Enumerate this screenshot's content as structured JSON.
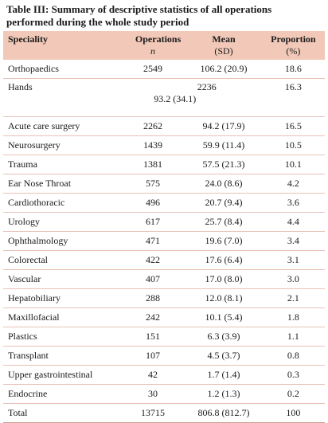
{
  "caption_line1": "Table III: Summary of descriptive statistics of all operations",
  "caption_line2": "performed during the whole study period",
  "headers": {
    "speciality": "Speciality",
    "operations": "Operations",
    "operations_sub": "n",
    "mean": "Mean",
    "mean_sub": "(SD)",
    "proportion": "Proportion",
    "proportion_sub": "(%)"
  },
  "hands": {
    "name": "Hands",
    "ops": "2236",
    "mean": "93.2 (34.1)",
    "prop": "16.3"
  },
  "rows": [
    {
      "name": "Orthopaedics",
      "ops": "2549",
      "mean": "106.2 (20.9)",
      "prop": "18.6"
    },
    {
      "name": "Acute care surgery",
      "ops": "2262",
      "mean": "94.2 (17.9)",
      "prop": "16.5"
    },
    {
      "name": "Neurosurgery",
      "ops": "1439",
      "mean": "59.9 (11.4)",
      "prop": "10.5"
    },
    {
      "name": "Trauma",
      "ops": "1381",
      "mean": "57.5 (21.3)",
      "prop": "10.1"
    },
    {
      "name": "Ear Nose Throat",
      "ops": "575",
      "mean": "24.0 (8.6)",
      "prop": "4.2"
    },
    {
      "name": "Cardiothoracic",
      "ops": "496",
      "mean": "20.7 (9.4)",
      "prop": "3.6"
    },
    {
      "name": "Urology",
      "ops": "617",
      "mean": "25.7 (8.4)",
      "prop": "4.4"
    },
    {
      "name": "Ophthalmology",
      "ops": "471",
      "mean": "19.6 (7.0)",
      "prop": "3.4"
    },
    {
      "name": "Colorectal",
      "ops": "422",
      "mean": "17.6 (6.4)",
      "prop": "3.1"
    },
    {
      "name": "Vascular",
      "ops": "407",
      "mean": "17.0 (8.0)",
      "prop": "3.0"
    },
    {
      "name": "Hepatobiliary",
      "ops": "288",
      "mean": "12.0 (8.1)",
      "prop": "2.1"
    },
    {
      "name": "Maxillofacial",
      "ops": "242",
      "mean": "10.1 (5.4)",
      "prop": "1.8"
    },
    {
      "name": "Plastics",
      "ops": "151",
      "mean": "6.3 (3.9)",
      "prop": "1.1"
    },
    {
      "name": "Transplant",
      "ops": "107",
      "mean": "4.5 (3.7)",
      "prop": "0.8"
    },
    {
      "name": "Upper gastrointestinal",
      "ops": "42",
      "mean": "1.7 (1.4)",
      "prop": "0.3"
    },
    {
      "name": "Endocrine",
      "ops": "30",
      "mean": "1.2 (1.3)",
      "prop": "0.2"
    },
    {
      "name": "Total",
      "ops": "13715",
      "mean": "806.8 (812.7)",
      "prop": "100"
    }
  ],
  "colors": {
    "header_bg": "#f2c9b8",
    "rule": "#e7c2b5"
  }
}
